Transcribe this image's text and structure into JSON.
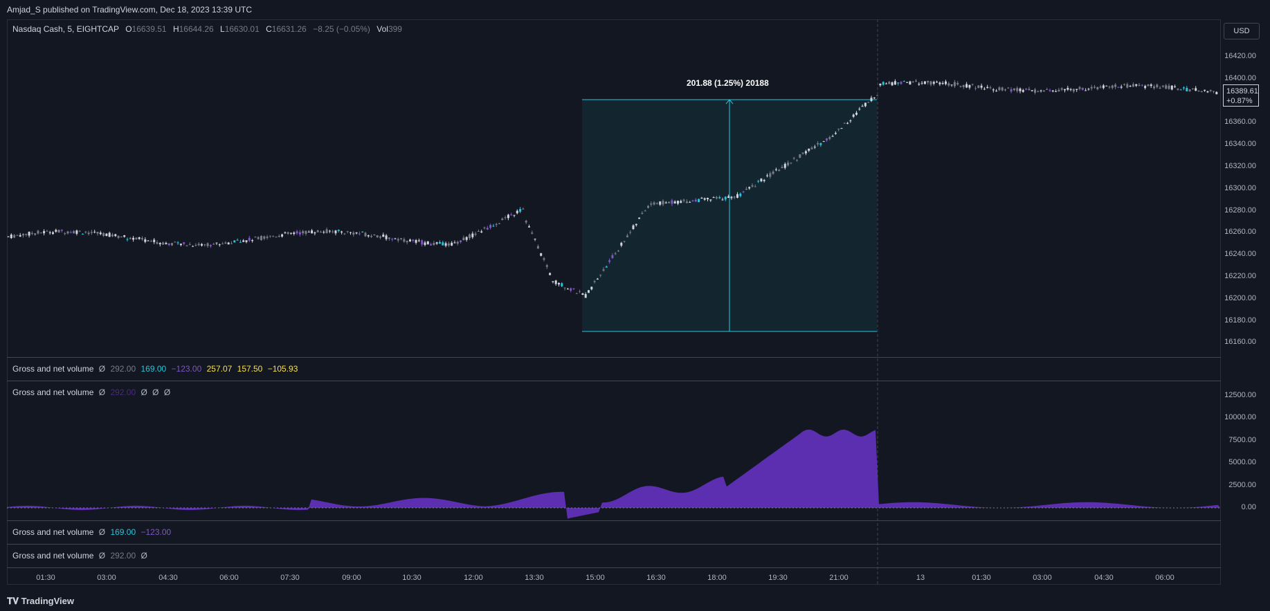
{
  "header": {
    "published_text": "Amjad_S published on TradingView.com, Dec 18, 2023 13:39 UTC"
  },
  "symbol_legend": {
    "symbol": "Nasdaq Cash, 5, EIGHTCAP",
    "o_label": "O",
    "o_value": "16639.51",
    "h_label": "H",
    "h_value": "16644.26",
    "l_label": "L",
    "l_value": "16630.01",
    "c_label": "C",
    "c_value": "16631.26",
    "change": "−8.25 (−0.05%)",
    "vol_label": "Vol",
    "vol_value": "399"
  },
  "currency_button": "USD",
  "last_price": {
    "price": "16389.61",
    "change": "+0.87%"
  },
  "measure": {
    "label": "201.88 (1.25%) 20188"
  },
  "price_axis": [
    "16420.00",
    "16400.00",
    "16380.00",
    "16360.00",
    "16340.00",
    "16320.00",
    "16300.00",
    "16280.00",
    "16260.00",
    "16240.00",
    "16220.00",
    "16200.00",
    "16180.00",
    "16160.00"
  ],
  "indicator_axis": [
    "12500.00",
    "10000.00",
    "7500.00",
    "5000.00",
    "2500.00",
    "0.00"
  ],
  "time_axis": [
    "01:30",
    "03:00",
    "04:30",
    "06:00",
    "07:30",
    "09:00",
    "10:30",
    "12:00",
    "13:30",
    "15:00",
    "16:30",
    "18:00",
    "19:30",
    "21:00",
    "13",
    "01:30",
    "03:00",
    "04:30",
    "06:00"
  ],
  "indicators": {
    "pane1": {
      "title": "Gross and net volume",
      "sym": "Ø",
      "v1": "292.00",
      "v2": "169.00",
      "v3": "−123.00",
      "v4": "257.07",
      "v5": "157.50",
      "v6": "−105.93"
    },
    "pane2": {
      "title": "Gross and net volume",
      "sym": "Ø",
      "v1": "292.00",
      "v2": "Ø",
      "v3": "Ø",
      "v4": "Ø"
    },
    "pane3": {
      "title": "Gross and net volume",
      "sym": "Ø",
      "v1": "169.00",
      "v2": "−123.00"
    },
    "pane4": {
      "title": "Gross and net volume",
      "sym": "Ø",
      "v1": "292.00",
      "v2": "Ø"
    }
  },
  "colors": {
    "bg": "#131722",
    "up": "#d1d4dc",
    "down": "#787b86",
    "cyan": "#26c6da",
    "purple": "#673ab7",
    "area": "#5b2fb0",
    "yellow": "#f7e04b"
  },
  "footer": {
    "brand": "TradingView"
  }
}
